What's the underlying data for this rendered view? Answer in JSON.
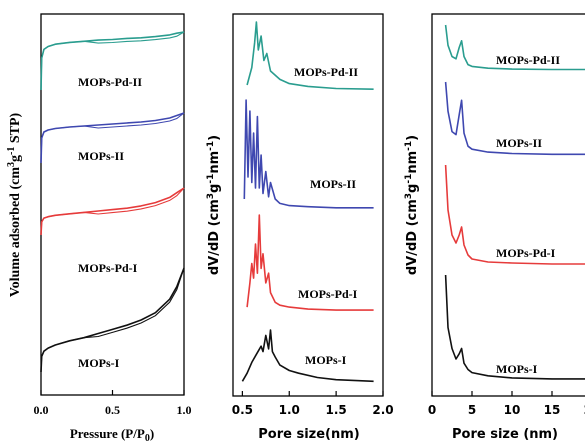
{
  "chart_data": [
    {
      "type": "line",
      "title": "",
      "xlabel": "Pressure (P/P",
      "xlabel_sub": "0",
      "xlabel_close": ")",
      "ylabel": "Volume adsorbed (cm",
      "ylabel_sup1": "3",
      "ylabel_mid": "g",
      "ylabel_sup2": "-1",
      "ylabel_end": " STP)",
      "xlim": [
        0.0,
        1.0
      ],
      "xticks": [
        "0.0",
        "0.5",
        "1.0"
      ],
      "yticks": [],
      "grid": false,
      "series": [
        {
          "name": "MOPs-Pd-II",
          "color": "#2a9d8f",
          "x": [
            0.0,
            0.005,
            0.02,
            0.05,
            0.1,
            0.2,
            0.3,
            0.4,
            0.5,
            0.6,
            0.7,
            0.8,
            0.9,
            0.95,
            1.0
          ],
          "y": [
            0.0,
            0.55,
            0.7,
            0.75,
            0.79,
            0.82,
            0.84,
            0.86,
            0.87,
            0.89,
            0.9,
            0.92,
            0.95,
            0.98,
            1.0
          ]
        },
        {
          "name": "MOPs-II",
          "color": "#3f48b0",
          "x": [
            0.0,
            0.005,
            0.02,
            0.05,
            0.1,
            0.2,
            0.3,
            0.4,
            0.5,
            0.6,
            0.7,
            0.8,
            0.9,
            0.95,
            1.0
          ],
          "y": [
            0.0,
            0.5,
            0.62,
            0.66,
            0.69,
            0.72,
            0.74,
            0.76,
            0.78,
            0.8,
            0.82,
            0.85,
            0.9,
            0.95,
            1.0
          ]
        },
        {
          "name": "MOPs-Pd-I",
          "color": "#e63b3b",
          "x": [
            0.0,
            0.005,
            0.02,
            0.05,
            0.1,
            0.2,
            0.3,
            0.4,
            0.5,
            0.6,
            0.7,
            0.8,
            0.9,
            0.95,
            1.0
          ],
          "y": [
            0.0,
            0.28,
            0.36,
            0.39,
            0.42,
            0.45,
            0.48,
            0.51,
            0.54,
            0.57,
            0.62,
            0.69,
            0.8,
            0.9,
            1.0
          ]
        },
        {
          "name": "MOPs-I",
          "color": "#111111",
          "x": [
            0.0,
            0.005,
            0.02,
            0.05,
            0.1,
            0.2,
            0.3,
            0.4,
            0.5,
            0.6,
            0.7,
            0.8,
            0.9,
            0.95,
            1.0
          ],
          "y": [
            0.0,
            0.15,
            0.2,
            0.23,
            0.26,
            0.3,
            0.33,
            0.37,
            0.41,
            0.45,
            0.5,
            0.57,
            0.7,
            0.82,
            1.0
          ]
        }
      ]
    },
    {
      "type": "line",
      "title": "",
      "xlabel": "Pore size(nm)",
      "ylabel": "dV/dD (cm",
      "ylabel_sup1": "3",
      "ylabel_mid": "g",
      "ylabel_sup2": "-1",
      "ylabel_mid2": "nm",
      "ylabel_sup3": "-1",
      "ylabel_end": ")",
      "xlim": [
        0.4,
        2.0
      ],
      "xticks": [
        "0.5",
        "1.0",
        "1.5",
        "2.0"
      ],
      "yticks": [],
      "grid": false,
      "series": [
        {
          "name": "MOPs-Pd-II",
          "color": "#2a9d8f",
          "x": [
            0.55,
            0.6,
            0.63,
            0.65,
            0.67,
            0.7,
            0.73,
            0.76,
            0.8,
            0.9,
            1.0,
            1.2,
            1.5,
            1.9
          ],
          "y": [
            0.1,
            0.35,
            0.7,
            1.0,
            0.6,
            0.8,
            0.45,
            0.55,
            0.3,
            0.18,
            0.12,
            0.08,
            0.05,
            0.04
          ]
        },
        {
          "name": "MOPs-II",
          "color": "#3f48b0",
          "x": [
            0.52,
            0.54,
            0.56,
            0.58,
            0.6,
            0.62,
            0.64,
            0.66,
            0.68,
            0.7,
            0.72,
            0.75,
            0.78,
            0.8,
            0.85,
            0.9,
            1.0,
            1.2,
            1.5,
            1.9
          ],
          "y": [
            0.1,
            1.0,
            0.3,
            0.9,
            0.25,
            0.7,
            0.2,
            0.85,
            0.2,
            0.5,
            0.15,
            0.35,
            0.12,
            0.25,
            0.1,
            0.06,
            0.04,
            0.03,
            0.02,
            0.02
          ]
        },
        {
          "name": "MOPs-Pd-I",
          "color": "#e63b3b",
          "x": [
            0.55,
            0.58,
            0.6,
            0.62,
            0.64,
            0.66,
            0.68,
            0.7,
            0.72,
            0.75,
            0.78,
            0.8,
            0.85,
            0.9,
            1.0,
            1.2,
            1.5,
            1.9
          ],
          "y": [
            0.05,
            0.3,
            0.5,
            0.35,
            0.7,
            0.4,
            1.0,
            0.45,
            0.6,
            0.3,
            0.4,
            0.2,
            0.1,
            0.07,
            0.05,
            0.03,
            0.02,
            0.02
          ]
        },
        {
          "name": "MOPs-I",
          "color": "#111111",
          "x": [
            0.5,
            0.55,
            0.6,
            0.65,
            0.7,
            0.72,
            0.75,
            0.78,
            0.8,
            0.82,
            0.85,
            0.9,
            1.0,
            1.1,
            1.3,
            1.5,
            1.9
          ],
          "y": [
            0.05,
            0.2,
            0.4,
            0.55,
            0.7,
            0.6,
            0.9,
            0.65,
            1.0,
            0.6,
            0.5,
            0.35,
            0.25,
            0.2,
            0.12,
            0.08,
            0.05
          ]
        }
      ]
    },
    {
      "type": "line",
      "title": "",
      "xlabel": "Pore size (nm)",
      "ylabel": "dV/dD (cm",
      "ylabel_sup1": "3",
      "ylabel_mid": "g",
      "ylabel_sup2": "-1",
      "ylabel_mid2": "nm",
      "ylabel_sup3": "-1",
      "ylabel_end": ")",
      "xlim": [
        0,
        20
      ],
      "xticks": [
        "0",
        "5",
        "10",
        "15",
        "20"
      ],
      "yticks": [],
      "grid": false,
      "series": [
        {
          "name": "MOPs-Pd-II",
          "color": "#2a9d8f",
          "x": [
            1.7,
            2,
            2.5,
            3,
            3.4,
            3.7,
            4,
            4.5,
            5,
            7,
            10,
            15,
            20
          ],
          "y": [
            1.0,
            0.55,
            0.3,
            0.25,
            0.5,
            0.65,
            0.3,
            0.12,
            0.08,
            0.04,
            0.02,
            0.01,
            0.01
          ]
        },
        {
          "name": "MOPs-II",
          "color": "#3f48b0",
          "x": [
            1.7,
            2,
            2.5,
            3,
            3.4,
            3.7,
            4,
            4.5,
            5,
            7,
            10,
            15,
            20
          ],
          "y": [
            1.0,
            0.6,
            0.32,
            0.28,
            0.55,
            0.75,
            0.3,
            0.12,
            0.08,
            0.04,
            0.02,
            0.01,
            0.01
          ]
        },
        {
          "name": "MOPs-Pd-I",
          "color": "#e63b3b",
          "x": [
            1.7,
            2,
            2.5,
            3,
            3.4,
            3.7,
            4,
            4.5,
            5,
            7,
            10,
            15,
            20
          ],
          "y": [
            1.0,
            0.55,
            0.3,
            0.22,
            0.3,
            0.38,
            0.2,
            0.1,
            0.06,
            0.03,
            0.02,
            0.01,
            0.01
          ]
        },
        {
          "name": "MOPs-I",
          "color": "#111111",
          "x": [
            1.7,
            2,
            2.5,
            3,
            3.4,
            3.7,
            4,
            4.5,
            5,
            7,
            10,
            15,
            20
          ],
          "y": [
            1.0,
            0.5,
            0.3,
            0.2,
            0.25,
            0.3,
            0.16,
            0.1,
            0.07,
            0.04,
            0.02,
            0.01,
            0.01
          ]
        }
      ]
    }
  ]
}
